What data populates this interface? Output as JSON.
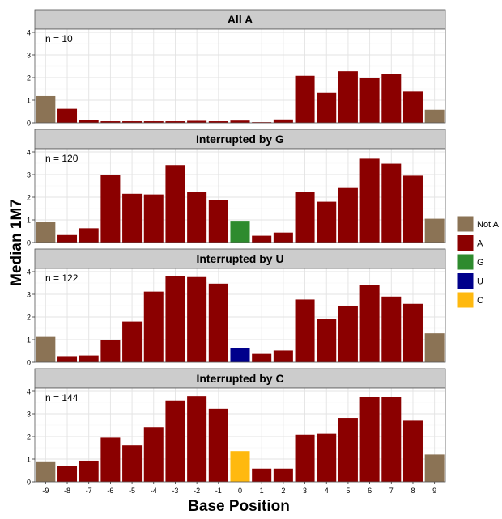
{
  "chart_data": {
    "type": "bar",
    "xlabel": "Base Position",
    "ylabel": "Median 1M7",
    "x_ticks": [
      "-9",
      "-8",
      "-7",
      "-6",
      "-5",
      "-4",
      "-3",
      "-2",
      "-1",
      "0",
      "1",
      "2",
      "3",
      "4",
      "5",
      "6",
      "7",
      "8",
      "9"
    ],
    "ylim": [
      0,
      4
    ],
    "y_ticks": [
      0,
      1,
      2,
      3,
      4
    ],
    "grid": true,
    "legend_position": "right",
    "legend": [
      {
        "key": "NotA",
        "label": "Not A",
        "color": "#8B7355"
      },
      {
        "key": "A",
        "label": "A",
        "color": "#8B0000"
      },
      {
        "key": "G",
        "label": "G",
        "color": "#2E8B2E"
      },
      {
        "key": "U",
        "label": "U",
        "color": "#00008B"
      },
      {
        "key": "C",
        "label": "C",
        "color": "#FFB90F"
      }
    ],
    "panels": [
      {
        "title": "All A",
        "annotation": "n = 10",
        "values": [
          1.18,
          0.62,
          0.14,
          0.07,
          0.07,
          0.07,
          0.07,
          0.09,
          0.07,
          0.1,
          0.03,
          0.15,
          2.08,
          1.33,
          2.28,
          1.97,
          2.17,
          1.38,
          0.58
        ],
        "bases": [
          "NotA",
          "A",
          "A",
          "A",
          "A",
          "A",
          "A",
          "A",
          "A",
          "A",
          "A",
          "A",
          "A",
          "A",
          "A",
          "A",
          "A",
          "A",
          "NotA"
        ]
      },
      {
        "title": "Interrupted by G",
        "annotation": "n = 120",
        "values": [
          0.9,
          0.33,
          0.63,
          2.97,
          2.15,
          2.12,
          3.42,
          2.25,
          1.88,
          0.96,
          0.3,
          0.44,
          2.22,
          1.8,
          2.44,
          3.7,
          3.48,
          2.95,
          1.05
        ],
        "bases": [
          "NotA",
          "A",
          "A",
          "A",
          "A",
          "A",
          "A",
          "A",
          "A",
          "G",
          "A",
          "A",
          "A",
          "A",
          "A",
          "A",
          "A",
          "A",
          "NotA"
        ]
      },
      {
        "title": "Interrupted by U",
        "annotation": "n = 122",
        "values": [
          1.12,
          0.27,
          0.3,
          0.97,
          1.8,
          3.12,
          3.82,
          3.76,
          3.47,
          0.62,
          0.37,
          0.52,
          2.77,
          1.92,
          2.48,
          3.42,
          2.9,
          2.58,
          1.28
        ],
        "bases": [
          "NotA",
          "A",
          "A",
          "A",
          "A",
          "A",
          "A",
          "A",
          "A",
          "U",
          "A",
          "A",
          "A",
          "A",
          "A",
          "A",
          "A",
          "A",
          "NotA"
        ]
      },
      {
        "title": "Interrupted by C",
        "annotation": "n = 144",
        "values": [
          0.9,
          0.68,
          0.93,
          1.95,
          1.6,
          2.42,
          3.58,
          3.78,
          3.22,
          1.35,
          0.58,
          0.58,
          2.08,
          2.12,
          2.82,
          3.75,
          3.75,
          2.7,
          1.2
        ],
        "bases": [
          "NotA",
          "A",
          "A",
          "A",
          "A",
          "A",
          "A",
          "A",
          "A",
          "C",
          "A",
          "A",
          "A",
          "A",
          "A",
          "A",
          "A",
          "A",
          "NotA"
        ]
      }
    ]
  }
}
